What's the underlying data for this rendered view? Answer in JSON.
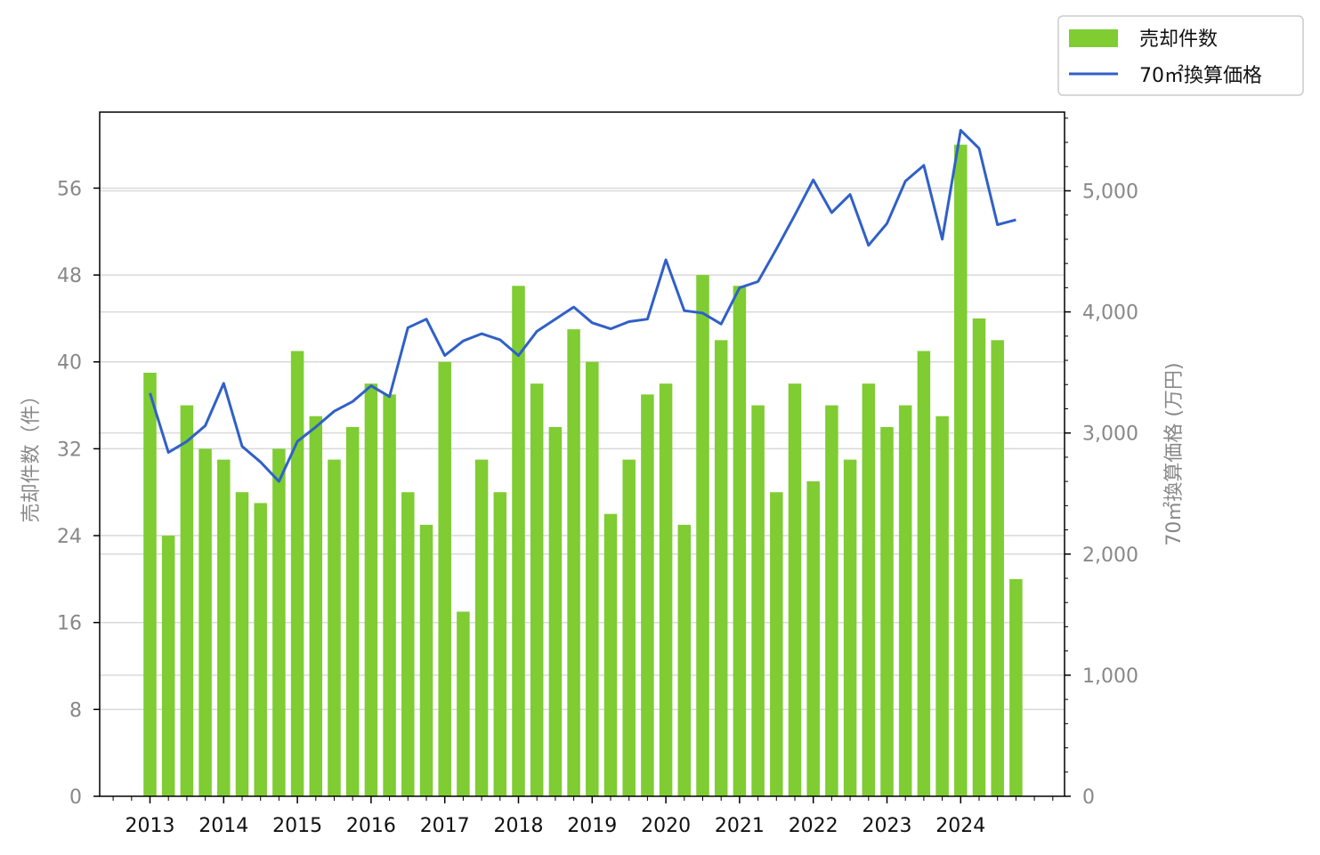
{
  "chart_data": {
    "type": "bar+line",
    "title": "",
    "xlabel": "",
    "x_ticks": [
      "2013",
      "2014",
      "2015",
      "2016",
      "2017",
      "2018",
      "2019",
      "2020",
      "2021",
      "2022",
      "2023",
      "2024"
    ],
    "quarters_per_year": 4,
    "series": [
      {
        "name": "売却件数",
        "kind": "bar",
        "axis": "left",
        "color": "#7FCC33",
        "values": [
          39,
          24,
          36,
          32,
          31,
          28,
          27,
          32,
          41,
          35,
          31,
          34,
          38,
          37,
          28,
          25,
          40,
          17,
          31,
          28,
          47,
          38,
          34,
          43,
          40,
          26,
          31,
          37,
          38,
          25,
          48,
          42,
          47,
          36,
          28,
          38,
          29,
          36,
          31,
          38,
          34,
          36,
          41,
          35,
          60,
          44,
          42,
          20
        ]
      },
      {
        "name": "70㎡換算価格",
        "kind": "line",
        "axis": "right",
        "color": "#3060C8",
        "values": [
          3330,
          2840,
          2930,
          3060,
          3410,
          2890,
          2760,
          2600,
          2930,
          3050,
          3180,
          3260,
          3390,
          3300,
          3870,
          3940,
          3640,
          3760,
          3820,
          3770,
          3640,
          3840,
          3940,
          4040,
          3910,
          3860,
          3920,
          3940,
          4430,
          4010,
          3990,
          3900,
          4200,
          4250,
          4520,
          4800,
          5090,
          4820,
          4970,
          4550,
          4730,
          5080,
          5210,
          4600,
          5500,
          5350,
          4720,
          4760
        ]
      }
    ],
    "y_left": {
      "label": "売却件数（件）",
      "ylim": [
        0,
        63
      ],
      "ticks": [
        0,
        8,
        16,
        24,
        32,
        40,
        48,
        56
      ]
    },
    "y_right": {
      "label": "70㎡換算価格 (万円)",
      "ylim": [
        0,
        5650
      ],
      "ticks": [
        0,
        1000,
        2000,
        3000,
        4000,
        5000
      ],
      "tick_labels": [
        "0",
        "1,000",
        "2,000",
        "3,000",
        "4,000",
        "5,000"
      ]
    },
    "grid": "horizontal, right axis",
    "legend_position": "top-right, outside plot"
  }
}
